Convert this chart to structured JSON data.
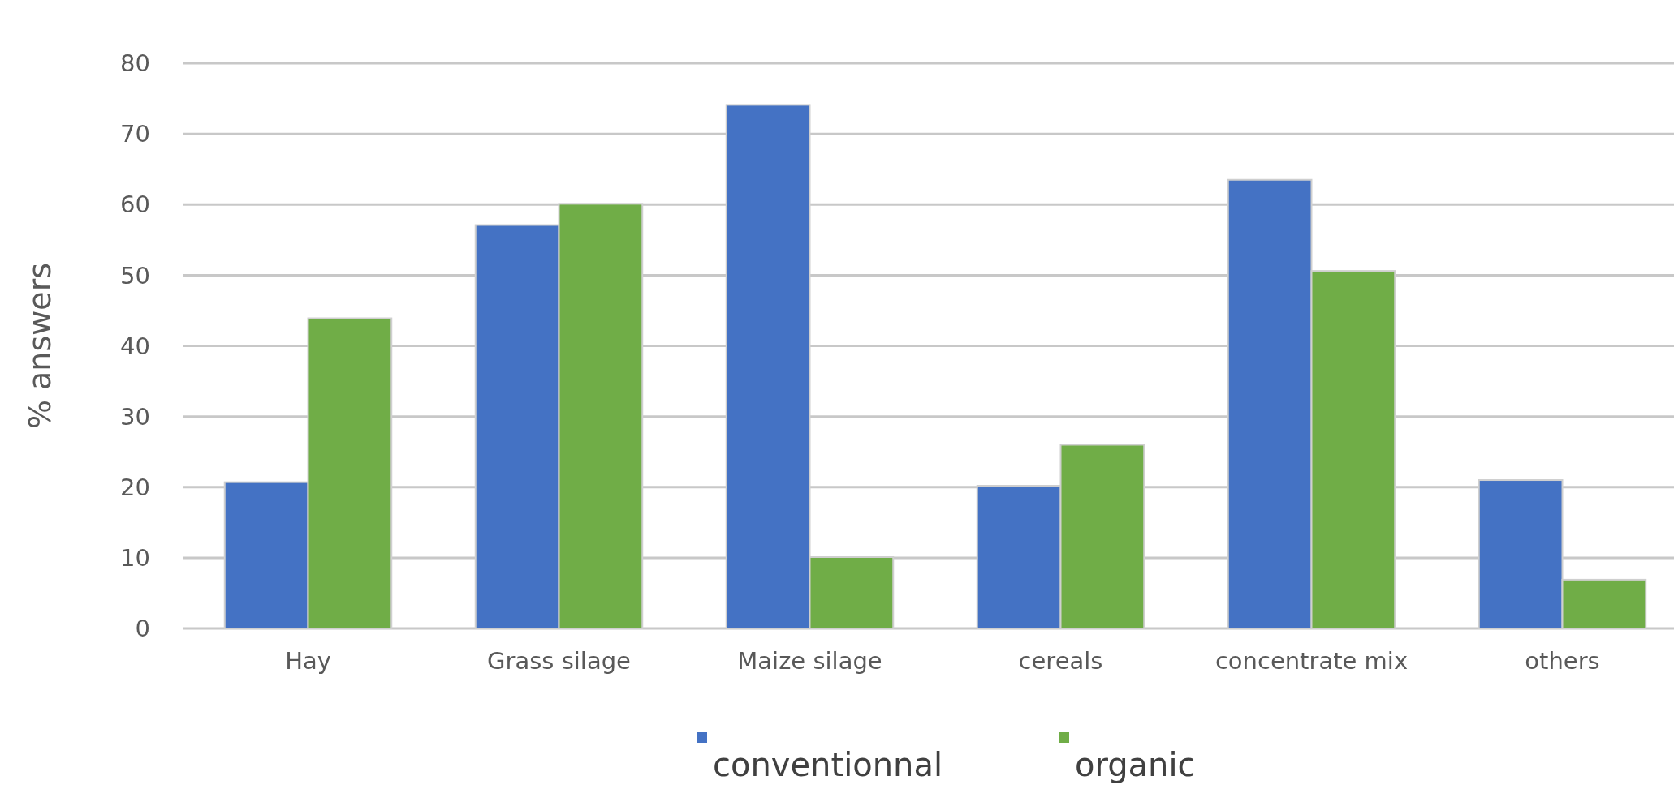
{
  "chart_data": {
    "type": "bar",
    "ylabel": "% answers",
    "categories": [
      "Hay",
      "Grass silage",
      "Maize silage",
      "cereals",
      "concentrate mix",
      "others"
    ],
    "series": [
      {
        "name": "conventionnal",
        "color": "#4472c4",
        "values": [
          20.7,
          57.1,
          74.1,
          20.2,
          63.5,
          21
        ]
      },
      {
        "name": "organic",
        "color": "#70ad47",
        "values": [
          43.9,
          60.1,
          10.1,
          26,
          50.6,
          6.9
        ]
      }
    ],
    "ylim": [
      0,
      80
    ],
    "yticks": [
      0,
      10,
      20,
      30,
      40,
      50,
      60,
      70,
      80
    ],
    "grid": "y",
    "legend": "bottom"
  }
}
